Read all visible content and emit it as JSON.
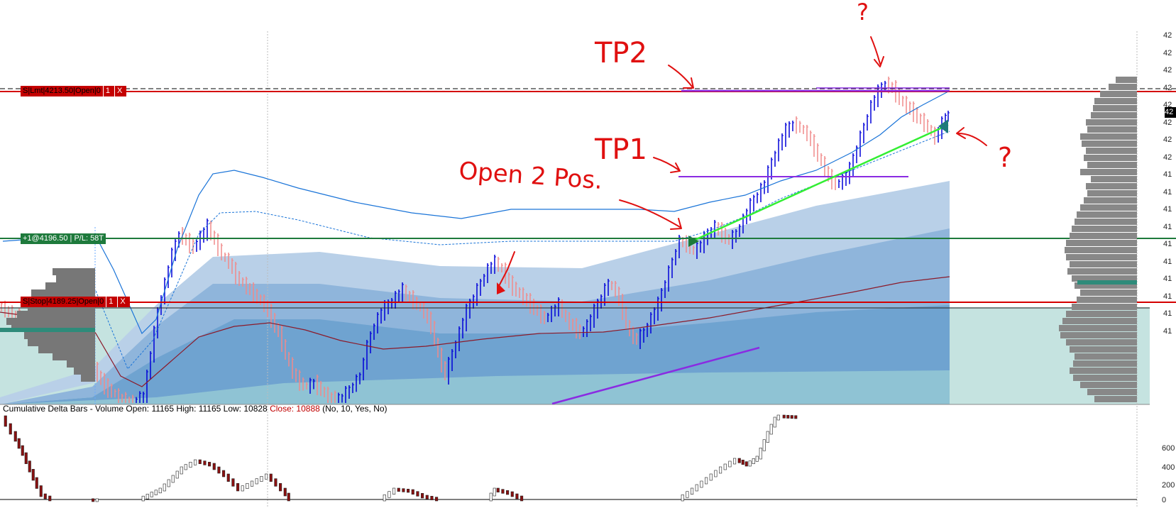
{
  "orders": {
    "stop_limit": {
      "label": "S|Lmt|4213.50|Open|0",
      "btn1": "1",
      "btn2": "X"
    },
    "position": {
      "label": "+1@4196.50 | P/L: 58T"
    },
    "stop": {
      "label": "S|Stop|4189.25|Open|0",
      "btn1": "1",
      "btn2": "X"
    }
  },
  "price_axis": {
    "labels": [
      "42",
      "42",
      "42",
      "42",
      "42",
      "42",
      "42",
      "42",
      "41",
      "41",
      "41",
      "41",
      "41",
      "41",
      "41",
      "41",
      "41",
      "41"
    ],
    "current_price_badge": "42"
  },
  "indicator": {
    "name": "Cumulative Delta Bars - Volume",
    "open": "Open: 11165",
    "high": "High: 11165",
    "low": "Low: 10828",
    "close": "Close: 10888",
    "params": "(No, 10, Yes, No)",
    "axis_labels": [
      "600",
      "400",
      "200",
      "0"
    ]
  },
  "annotations": {
    "tp2": "TP2",
    "tp1": "TP1",
    "open_pos": "Open 2 Pos.",
    "question_top": "?",
    "question_right": "?"
  },
  "colors": {
    "up_bar": "#0000d8",
    "down_bar": "#f08a8a",
    "vwap": "#8b1a2a",
    "band_fill": "#3f7fb8",
    "order_red": "#d40000",
    "position_green": "#1e7a3c",
    "annotation_red": "#e01010",
    "purple_line": "#8a2be2",
    "green_trend": "#33ee33"
  },
  "chart_data": {
    "type": "candlestick",
    "title": "",
    "price_levels": {
      "stop_limit_order": 4213.5,
      "position_entry": 4196.5,
      "stop_order": 4189.25
    },
    "indicator_panel": {
      "name": "Cumulative Delta Bars - Volume",
      "open": 11165,
      "high": 11165,
      "low": 10828,
      "close": 10888,
      "axis_ticks": [
        0,
        200,
        400,
        600
      ]
    }
  }
}
